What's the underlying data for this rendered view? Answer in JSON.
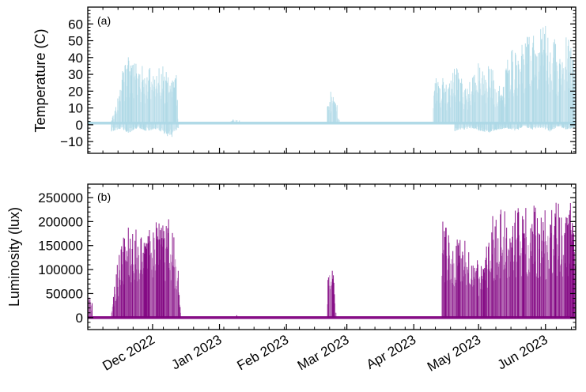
{
  "chart_data": [
    {
      "type": "line",
      "panel_label": "(a)",
      "ylabel": "Temperature (C)",
      "xlim": [
        "2022-11-01",
        "2023-06-15"
      ],
      "ylim": [
        -17,
        70
      ],
      "yticks": [
        -10,
        0,
        10,
        20,
        30,
        40,
        50,
        60
      ],
      "ytick_labels": [
        "−10",
        "0",
        "10",
        "20",
        "30",
        "40",
        "50",
        "60"
      ],
      "grid": false,
      "color": "#add8e6",
      "baseline_value": 1,
      "series": [
        {
          "x": [
            "2022-11-01",
            "2022-11-12",
            "2022-11-14",
            "2022-11-16",
            "2022-11-18",
            "2022-11-20",
            "2022-11-22",
            "2022-11-24",
            "2022-11-26",
            "2022-11-28",
            "2022-11-30",
            "2022-12-02",
            "2022-12-04",
            "2022-12-06",
            "2022-12-08",
            "2022-12-10",
            "2022-12-12",
            "2022-12-13",
            "2022-12-15",
            "2023-01-05",
            "2023-01-08",
            "2023-01-10",
            "2023-01-12",
            "2023-02-15",
            "2023-02-20",
            "2023-02-22",
            "2023-02-24",
            "2023-02-26",
            "2023-04-05",
            "2023-04-10",
            "2023-04-12",
            "2023-04-14",
            "2023-04-16",
            "2023-04-18",
            "2023-04-20",
            "2023-04-22",
            "2023-04-24",
            "2023-04-26",
            "2023-04-28",
            "2023-04-30",
            "2023-05-02",
            "2023-05-04",
            "2023-05-06",
            "2023-05-08",
            "2023-05-10",
            "2023-05-12",
            "2023-05-14",
            "2023-05-16",
            "2023-05-18",
            "2023-05-20",
            "2023-05-22",
            "2023-05-24",
            "2023-05-26",
            "2023-05-28",
            "2023-05-30",
            "2023-06-01",
            "2023-06-03",
            "2023-06-05",
            "2023-06-07",
            "2023-06-09",
            "2023-06-11",
            "2023-06-13",
            "2023-06-15"
          ],
          "y": [
            2,
            3,
            12,
            25,
            40,
            41,
            38,
            42,
            36,
            34,
            35,
            33,
            36,
            35,
            30,
            29,
            30,
            1,
            1,
            1,
            4,
            3,
            1,
            1,
            12,
            23,
            15,
            1,
            1,
            27,
            28,
            29,
            24,
            27,
            40,
            30,
            27,
            22,
            30,
            34,
            40,
            35,
            42,
            30,
            28,
            18,
            38,
            45,
            48,
            46,
            50,
            55,
            56,
            52,
            58,
            60,
            50,
            55,
            46,
            50,
            55,
            52,
            40
          ]
        },
        {
          "x": [
            "2022-11-12",
            "2022-11-16",
            "2022-11-20",
            "2022-11-24",
            "2022-11-28",
            "2022-12-02",
            "2022-12-06",
            "2022-12-10",
            "2022-12-13",
            "2023-04-20",
            "2023-04-24",
            "2023-04-28",
            "2023-05-02",
            "2023-05-06",
            "2023-05-10",
            "2023-05-14",
            "2023-05-18",
            "2023-05-22",
            "2023-05-26",
            "2023-05-30",
            "2023-06-03",
            "2023-06-07",
            "2023-06-11",
            "2023-06-15"
          ],
          "y": [
            -4,
            -3,
            -5,
            -2,
            -4,
            -3,
            -6,
            -8,
            -2,
            -4,
            -3,
            -2,
            -4,
            -5,
            -3,
            -2,
            -4,
            -1,
            -3,
            -2,
            -4,
            -1,
            -3,
            -2
          ]
        }
      ]
    },
    {
      "type": "line",
      "panel_label": "(b)",
      "ylabel": "Luminosity (lux)",
      "xlim": [
        "2022-11-01",
        "2023-06-15"
      ],
      "ylim": [
        -25000,
        278000
      ],
      "yticks": [
        0,
        50000,
        100000,
        150000,
        200000,
        250000
      ],
      "ytick_labels": [
        "0",
        "50000",
        "100000",
        "150000",
        "200000",
        "250000"
      ],
      "xticks": [
        "2022-12-01",
        "2023-01-01",
        "2023-02-01",
        "2023-03-01",
        "2023-04-01",
        "2023-05-01",
        "2023-06-01"
      ],
      "xtick_labels": [
        "Dec 2022",
        "Jan 2023",
        "Feb 2023",
        "Mar 2023",
        "Apr 2023",
        "May 2023",
        "Jun 2023"
      ],
      "grid": false,
      "color": "#800080",
      "baseline_value": 0,
      "series": [
        {
          "x": [
            "2022-11-01",
            "2022-11-03",
            "2022-11-12",
            "2022-11-14",
            "2022-11-16",
            "2022-11-18",
            "2022-11-20",
            "2022-11-22",
            "2022-11-24",
            "2022-11-26",
            "2022-11-28",
            "2022-11-30",
            "2022-12-02",
            "2022-12-04",
            "2022-12-06",
            "2022-12-08",
            "2022-12-10",
            "2022-12-12",
            "2022-12-14",
            "2023-01-09",
            "2023-02-20",
            "2023-02-21",
            "2023-02-22",
            "2023-02-23",
            "2023-02-24",
            "2023-04-14",
            "2023-04-16",
            "2023-04-18",
            "2023-04-20",
            "2023-04-22",
            "2023-04-24",
            "2023-04-26",
            "2023-04-28",
            "2023-04-30",
            "2023-05-02",
            "2023-05-04",
            "2023-05-06",
            "2023-05-08",
            "2023-05-10",
            "2023-05-12",
            "2023-05-14",
            "2023-05-16",
            "2023-05-18",
            "2023-05-20",
            "2023-05-22",
            "2023-05-24",
            "2023-05-26",
            "2023-05-28",
            "2023-05-30",
            "2023-06-01",
            "2023-06-03",
            "2023-06-05",
            "2023-06-07",
            "2023-06-09",
            "2023-06-11",
            "2023-06-13",
            "2023-06-15"
          ],
          "y": [
            80000,
            30000,
            20000,
            90000,
            150000,
            175000,
            190000,
            180000,
            200000,
            170000,
            160000,
            225000,
            230000,
            215000,
            200000,
            230000,
            180000,
            170000,
            10000,
            5000,
            60000,
            135000,
            120000,
            80000,
            10000,
            210000,
            205000,
            200000,
            150000,
            175000,
            160000,
            180000,
            120000,
            140000,
            110000,
            130000,
            200000,
            215000,
            205000,
            240000,
            230000,
            200000,
            240000,
            235000,
            220000,
            245000,
            240000,
            230000,
            215000,
            225000,
            240000,
            235000,
            250000,
            240000,
            230000,
            245000,
            120000
          ]
        }
      ]
    }
  ]
}
